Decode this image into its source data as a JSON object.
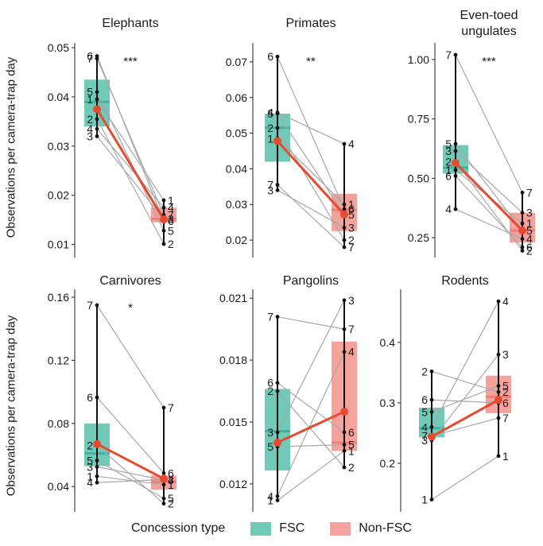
{
  "ylabel_row1": "Observations per camera-trap day",
  "ylabel_row2": "Observations per camera-trap day",
  "legend": {
    "title": "Concession type",
    "fsc_label": "FSC",
    "nonfsc_label": "Non-FSC"
  },
  "colors": {
    "fsc": "#6fcab8",
    "fsc_median": "#3fb39f",
    "nonfsc": "#f4a29b",
    "nonfsc_median": "#ee7f76",
    "mean_line": "#e84a2f",
    "pair_line": "#a8a8a8"
  },
  "chart_data": [
    {
      "type": "paired-box",
      "title": "Elephants",
      "significance": "***",
      "ylim": [
        0.008,
        0.05
      ],
      "yticks": [
        0.01,
        0.02,
        0.03,
        0.04,
        0.05
      ],
      "ytick_labels": [
        "0.01",
        "0.02",
        "0.03",
        "0.04",
        "0.05"
      ],
      "groups": [
        "FSC",
        "Non-FSC"
      ],
      "box": {
        "FSC": {
          "q1": 0.034,
          "median": 0.039,
          "q3": 0.0435
        },
        "Non-FSC": {
          "q1": 0.0145,
          "median": 0.0152,
          "q3": 0.0175
        }
      },
      "whisker": {
        "FSC": [
          0.032,
          0.048
        ],
        "Non-FSC": [
          0.01,
          0.019
        ]
      },
      "mean": {
        "FSC": 0.0375,
        "Non-FSC": 0.0151
      },
      "pairs": [
        {
          "label": "1",
          "FSC": 0.0395,
          "Non-FSC": 0.019
        },
        {
          "label": "2",
          "FSC": 0.0355,
          "Non-FSC": 0.0101
        },
        {
          "label": "3",
          "FSC": 0.032,
          "Non-FSC": 0.0152
        },
        {
          "label": "4",
          "FSC": 0.0335,
          "Non-FSC": 0.0175
        },
        {
          "label": "5",
          "FSC": 0.041,
          "Non-FSC": 0.0128
        },
        {
          "label": "6",
          "FSC": 0.0483,
          "Non-FSC": 0.0148
        },
        {
          "label": "7",
          "FSC": 0.0478,
          "Non-FSC": 0.016
        }
      ]
    },
    {
      "type": "paired-box",
      "title": "Primates",
      "significance": "**",
      "ylim": [
        0.016,
        0.074
      ],
      "yticks": [
        0.02,
        0.03,
        0.04,
        0.05,
        0.06,
        0.07
      ],
      "ytick_labels": [
        "0.02",
        "0.03",
        "0.04",
        "0.05",
        "0.06",
        "0.07"
      ],
      "groups": [
        "FSC",
        "Non-FSC"
      ],
      "box": {
        "FSC": {
          "q1": 0.042,
          "median": 0.0515,
          "q3": 0.0555
        },
        "Non-FSC": {
          "q1": 0.0225,
          "median": 0.0285,
          "q3": 0.033
        }
      },
      "whisker": {
        "FSC": [
          0.034,
          0.0715
        ],
        "Non-FSC": [
          0.018,
          0.047
        ]
      },
      "mean": {
        "FSC": 0.0478,
        "Non-FSC": 0.0272
      },
      "pairs": [
        {
          "label": "1",
          "FSC": 0.0485,
          "Non-FSC": 0.03
        },
        {
          "label": "2",
          "FSC": 0.0515,
          "Non-FSC": 0.02
        },
        {
          "label": "3",
          "FSC": 0.034,
          "Non-FSC": 0.0235
        },
        {
          "label": "4",
          "FSC": 0.0558,
          "Non-FSC": 0.047
        },
        {
          "label": "5",
          "FSC": 0.0555,
          "Non-FSC": 0.0272
        },
        {
          "label": "6",
          "FSC": 0.0715,
          "Non-FSC": 0.0287
        },
        {
          "label": "7",
          "FSC": 0.0355,
          "Non-FSC": 0.018
        }
      ]
    },
    {
      "type": "paired-box",
      "title": "Even-toed\nungulates",
      "significance": "***",
      "ylim": [
        0.18,
        1.05
      ],
      "yticks": [
        0.25,
        0.5,
        0.75,
        1.0
      ],
      "ytick_labels": [
        "0.25",
        "0.50",
        "0.75",
        "1.00"
      ],
      "groups": [
        "FSC",
        "Non-FSC"
      ],
      "box": {
        "FSC": {
          "q1": 0.52,
          "median": 0.545,
          "q3": 0.64
        },
        "Non-FSC": {
          "q1": 0.23,
          "median": 0.28,
          "q3": 0.355
        }
      },
      "whisker": {
        "FSC": [
          0.37,
          1.02
        ],
        "Non-FSC": [
          0.19,
          0.44
        ]
      },
      "mean": {
        "FSC": 0.565,
        "Non-FSC": 0.28
      },
      "pairs": [
        {
          "label": "1",
          "FSC": 0.535,
          "Non-FSC": 0.31
        },
        {
          "label": "2",
          "FSC": 0.57,
          "Non-FSC": 0.195
        },
        {
          "label": "3",
          "FSC": 0.615,
          "Non-FSC": 0.355
        },
        {
          "label": "4",
          "FSC": 0.37,
          "Non-FSC": 0.245
        },
        {
          "label": "5",
          "FSC": 0.645,
          "Non-FSC": 0.28
        },
        {
          "label": "6",
          "FSC": 0.51,
          "Non-FSC": 0.21
        },
        {
          "label": "7",
          "FSC": 1.02,
          "Non-FSC": 0.44
        }
      ]
    },
    {
      "type": "paired-box",
      "title": "Carnivores",
      "significance": "*",
      "ylim": [
        0.026,
        0.162
      ],
      "yticks": [
        0.04,
        0.08,
        0.12,
        0.16
      ],
      "ytick_labels": [
        "0.04",
        "0.08",
        "0.12",
        "0.16"
      ],
      "groups": [
        "FSC",
        "Non-FSC"
      ],
      "box": {
        "FSC": {
          "q1": 0.053,
          "median": 0.061,
          "q3": 0.08
        },
        "Non-FSC": {
          "q1": 0.038,
          "median": 0.043,
          "q3": 0.047
        }
      },
      "whisker": {
        "FSC": [
          0.042,
          0.155
        ],
        "Non-FSC": [
          0.029,
          0.09
        ]
      },
      "mean": {
        "FSC": 0.067,
        "Non-FSC": 0.045
      },
      "pairs": [
        {
          "label": "1",
          "FSC": 0.0465,
          "Non-FSC": 0.0412
        },
        {
          "label": "2",
          "FSC": 0.066,
          "Non-FSC": 0.0292
        },
        {
          "label": "3",
          "FSC": 0.0525,
          "Non-FSC": 0.0442
        },
        {
          "label": "4",
          "FSC": 0.0425,
          "Non-FSC": 0.0445
        },
        {
          "label": "5",
          "FSC": 0.0565,
          "Non-FSC": 0.0325
        },
        {
          "label": "6",
          "FSC": 0.0965,
          "Non-FSC": 0.0485
        },
        {
          "label": "7",
          "FSC": 0.155,
          "Non-FSC": 0.09
        }
      ]
    },
    {
      "type": "paired-box",
      "title": "Pangolins",
      "significance": "",
      "ylim": [
        0.0108,
        0.0212
      ],
      "yticks": [
        0.012,
        0.015,
        0.018,
        0.021
      ],
      "ytick_labels": [
        "0.012",
        "0.015",
        "0.018",
        "0.021"
      ],
      "groups": [
        "FSC",
        "Non-FSC"
      ],
      "box": {
        "FSC": {
          "q1": 0.01265,
          "median": 0.01455,
          "q3": 0.0166
        },
        "Non-FSC": {
          "q1": 0.0136,
          "median": 0.014,
          "q3": 0.0189
        }
      },
      "whisker": {
        "FSC": [
          0.0112,
          0.0201
        ],
        "Non-FSC": [
          0.0128,
          0.0209
        ]
      },
      "mean": {
        "FSC": 0.014,
        "Non-FSC": 0.0155
      },
      "pairs": [
        {
          "label": "1",
          "FSC": 0.0112,
          "Non-FSC": 0.0136
        },
        {
          "label": "2",
          "FSC": 0.0165,
          "Non-FSC": 0.0128
        },
        {
          "label": "3",
          "FSC": 0.0145,
          "Non-FSC": 0.0209
        },
        {
          "label": "4",
          "FSC": 0.0114,
          "Non-FSC": 0.0184
        },
        {
          "label": "5",
          "FSC": 0.0138,
          "Non-FSC": 0.0139
        },
        {
          "label": "6",
          "FSC": 0.0169,
          "Non-FSC": 0.0145
        },
        {
          "label": "7",
          "FSC": 0.0201,
          "Non-FSC": 0.0195
        }
      ]
    },
    {
      "type": "paired-box",
      "title": "Rodents",
      "significance": "",
      "ylim": [
        0.125,
        0.48
      ],
      "yticks": [
        0.2,
        0.3,
        0.4
      ],
      "ytick_labels": [
        "0.2",
        "0.3",
        "0.4"
      ],
      "groups": [
        "FSC",
        "Non-FSC"
      ],
      "box": {
        "FSC": {
          "q1": 0.243,
          "median": 0.258,
          "q3": 0.292
        },
        "Non-FSC": {
          "q1": 0.283,
          "median": 0.31,
          "q3": 0.345
        }
      },
      "whisker": {
        "FSC": [
          0.14,
          0.352
        ],
        "Non-FSC": [
          0.212,
          0.468
        ]
      },
      "mean": {
        "FSC": 0.244,
        "Non-FSC": 0.305
      },
      "pairs": [
        {
          "label": "1",
          "FSC": 0.14,
          "Non-FSC": 0.212
        },
        {
          "label": "2",
          "FSC": 0.352,
          "Non-FSC": 0.318
        },
        {
          "label": "3",
          "FSC": 0.238,
          "Non-FSC": 0.38
        },
        {
          "label": "4",
          "FSC": 0.26,
          "Non-FSC": 0.468
        },
        {
          "label": "5",
          "FSC": 0.285,
          "Non-FSC": 0.328
        },
        {
          "label": "6",
          "FSC": 0.305,
          "Non-FSC": 0.3
        },
        {
          "label": "7",
          "FSC": 0.245,
          "Non-FSC": 0.275
        }
      ]
    }
  ]
}
